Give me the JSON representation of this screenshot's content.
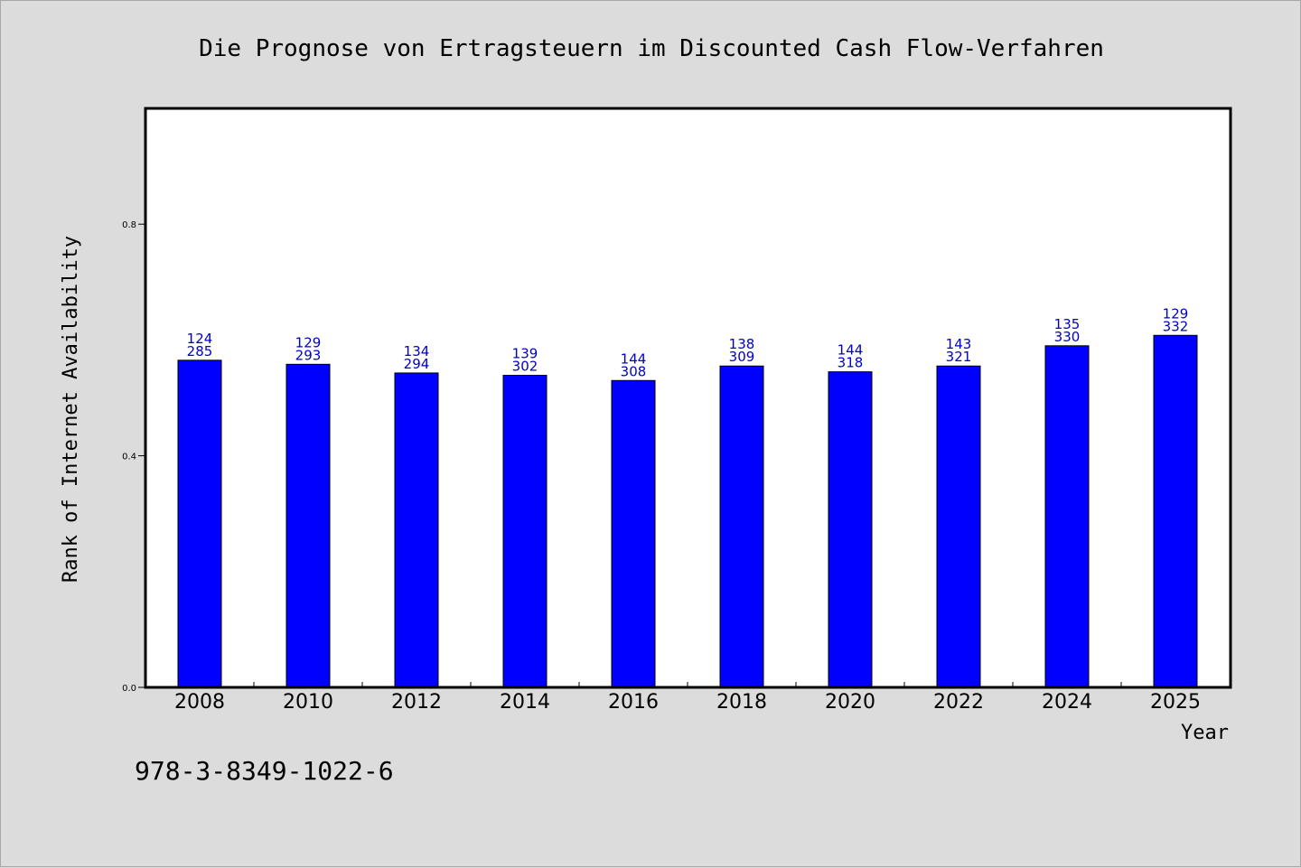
{
  "chart_data": {
    "type": "bar",
    "title": "Die Prognose von Ertragsteuern im Discounted Cash Flow-Verfahren",
    "xlabel": "Year",
    "ylabel": "Rank of Internet Availability",
    "categories": [
      "2008",
      "2010",
      "2012",
      "2014",
      "2016",
      "2018",
      "2020",
      "2022",
      "2024",
      "2025"
    ],
    "values": [
      0.565,
      0.558,
      0.543,
      0.539,
      0.53,
      0.555,
      0.545,
      0.555,
      0.59,
      0.608
    ],
    "data_labels_top": [
      "124",
      "129",
      "134",
      "139",
      "144",
      "138",
      "144",
      "143",
      "135",
      "129"
    ],
    "data_labels_bottom": [
      "285",
      "293",
      "294",
      "302",
      "308",
      "309",
      "318",
      "321",
      "330",
      "332"
    ],
    "ylim": [
      0,
      1.0
    ],
    "yticks": [
      0.0,
      0.4,
      0.8
    ],
    "ytick_labels": [
      "0.0",
      "0.4",
      "0.8"
    ],
    "grid": false,
    "legend": "none",
    "colors": {
      "bar": "#0000ff",
      "data_label": "#0000cc",
      "plot_background": "#ffffff",
      "figure_background": "#dcdcdc"
    }
  },
  "footer": {
    "isbn": "978-3-8349-1022-6"
  }
}
